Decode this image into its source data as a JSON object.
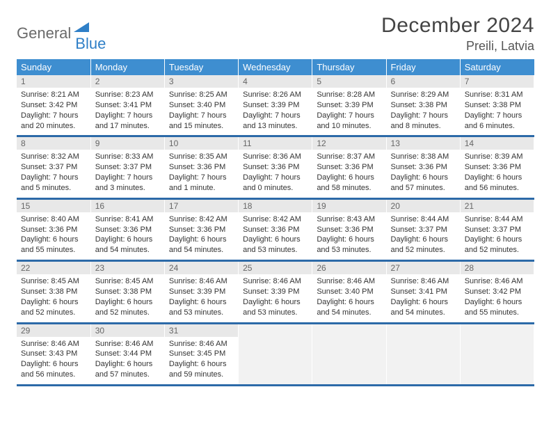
{
  "logo": {
    "text1": "General",
    "text2": "Blue",
    "text1_color": "#6a6a6a",
    "text2_color": "#2f7fc7",
    "triangle_color": "#2f7fc7"
  },
  "title": "December 2024",
  "location": "Preili, Latvia",
  "weekdays": [
    "Sunday",
    "Monday",
    "Tuesday",
    "Wednesday",
    "Thursday",
    "Friday",
    "Saturday"
  ],
  "colors": {
    "header_bg": "#3e8ed0",
    "header_text": "#ffffff",
    "daynum_bg": "#e8e8e8",
    "row_border": "#2c6aa8",
    "empty_bg": "#f2f2f2"
  },
  "fonts": {
    "title_size": 30,
    "location_size": 18,
    "weekday_size": 13,
    "daynum_size": 12,
    "content_size": 11
  },
  "grid": {
    "rows": 5,
    "cols": 7
  },
  "days": [
    {
      "n": 1,
      "sunrise": "8:21 AM",
      "sunset": "3:42 PM",
      "daylight": "7 hours and 20 minutes."
    },
    {
      "n": 2,
      "sunrise": "8:23 AM",
      "sunset": "3:41 PM",
      "daylight": "7 hours and 17 minutes."
    },
    {
      "n": 3,
      "sunrise": "8:25 AM",
      "sunset": "3:40 PM",
      "daylight": "7 hours and 15 minutes."
    },
    {
      "n": 4,
      "sunrise": "8:26 AM",
      "sunset": "3:39 PM",
      "daylight": "7 hours and 13 minutes."
    },
    {
      "n": 5,
      "sunrise": "8:28 AM",
      "sunset": "3:39 PM",
      "daylight": "7 hours and 10 minutes."
    },
    {
      "n": 6,
      "sunrise": "8:29 AM",
      "sunset": "3:38 PM",
      "daylight": "7 hours and 8 minutes."
    },
    {
      "n": 7,
      "sunrise": "8:31 AM",
      "sunset": "3:38 PM",
      "daylight": "7 hours and 6 minutes."
    },
    {
      "n": 8,
      "sunrise": "8:32 AM",
      "sunset": "3:37 PM",
      "daylight": "7 hours and 5 minutes."
    },
    {
      "n": 9,
      "sunrise": "8:33 AM",
      "sunset": "3:37 PM",
      "daylight": "7 hours and 3 minutes."
    },
    {
      "n": 10,
      "sunrise": "8:35 AM",
      "sunset": "3:36 PM",
      "daylight": "7 hours and 1 minute."
    },
    {
      "n": 11,
      "sunrise": "8:36 AM",
      "sunset": "3:36 PM",
      "daylight": "7 hours and 0 minutes."
    },
    {
      "n": 12,
      "sunrise": "8:37 AM",
      "sunset": "3:36 PM",
      "daylight": "6 hours and 58 minutes."
    },
    {
      "n": 13,
      "sunrise": "8:38 AM",
      "sunset": "3:36 PM",
      "daylight": "6 hours and 57 minutes."
    },
    {
      "n": 14,
      "sunrise": "8:39 AM",
      "sunset": "3:36 PM",
      "daylight": "6 hours and 56 minutes."
    },
    {
      "n": 15,
      "sunrise": "8:40 AM",
      "sunset": "3:36 PM",
      "daylight": "6 hours and 55 minutes."
    },
    {
      "n": 16,
      "sunrise": "8:41 AM",
      "sunset": "3:36 PM",
      "daylight": "6 hours and 54 minutes."
    },
    {
      "n": 17,
      "sunrise": "8:42 AM",
      "sunset": "3:36 PM",
      "daylight": "6 hours and 54 minutes."
    },
    {
      "n": 18,
      "sunrise": "8:42 AM",
      "sunset": "3:36 PM",
      "daylight": "6 hours and 53 minutes."
    },
    {
      "n": 19,
      "sunrise": "8:43 AM",
      "sunset": "3:36 PM",
      "daylight": "6 hours and 53 minutes."
    },
    {
      "n": 20,
      "sunrise": "8:44 AM",
      "sunset": "3:37 PM",
      "daylight": "6 hours and 52 minutes."
    },
    {
      "n": 21,
      "sunrise": "8:44 AM",
      "sunset": "3:37 PM",
      "daylight": "6 hours and 52 minutes."
    },
    {
      "n": 22,
      "sunrise": "8:45 AM",
      "sunset": "3:38 PM",
      "daylight": "6 hours and 52 minutes."
    },
    {
      "n": 23,
      "sunrise": "8:45 AM",
      "sunset": "3:38 PM",
      "daylight": "6 hours and 52 minutes."
    },
    {
      "n": 24,
      "sunrise": "8:46 AM",
      "sunset": "3:39 PM",
      "daylight": "6 hours and 53 minutes."
    },
    {
      "n": 25,
      "sunrise": "8:46 AM",
      "sunset": "3:39 PM",
      "daylight": "6 hours and 53 minutes."
    },
    {
      "n": 26,
      "sunrise": "8:46 AM",
      "sunset": "3:40 PM",
      "daylight": "6 hours and 54 minutes."
    },
    {
      "n": 27,
      "sunrise": "8:46 AM",
      "sunset": "3:41 PM",
      "daylight": "6 hours and 54 minutes."
    },
    {
      "n": 28,
      "sunrise": "8:46 AM",
      "sunset": "3:42 PM",
      "daylight": "6 hours and 55 minutes."
    },
    {
      "n": 29,
      "sunrise": "8:46 AM",
      "sunset": "3:43 PM",
      "daylight": "6 hours and 56 minutes."
    },
    {
      "n": 30,
      "sunrise": "8:46 AM",
      "sunset": "3:44 PM",
      "daylight": "6 hours and 57 minutes."
    },
    {
      "n": 31,
      "sunrise": "8:46 AM",
      "sunset": "3:45 PM",
      "daylight": "6 hours and 59 minutes."
    }
  ],
  "layout": {
    "start_weekday_index": 0,
    "total_cells": 35
  }
}
